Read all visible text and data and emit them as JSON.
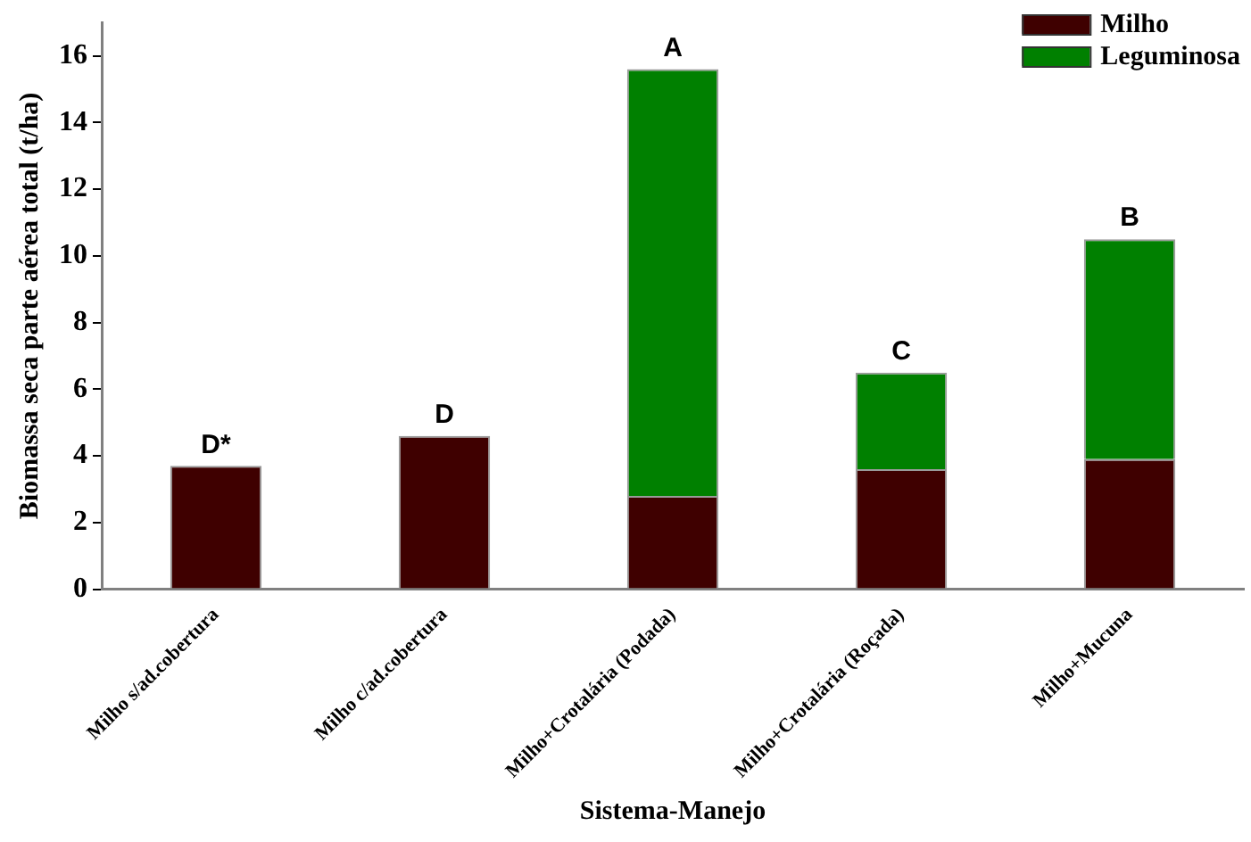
{
  "chart_data": {
    "type": "bar",
    "stacked": true,
    "xlabel": "Sistema-Manejo",
    "ylabel": "Biomassa seca parte aérea total (t/ha)",
    "categories": [
      "Milho s/ad.cobertura",
      "Milho c/ad.cobertura",
      "Milho+Crotalária (Podada)",
      "Milho+Crotalária (Roçada)",
      "Milho+Mucuna"
    ],
    "series": [
      {
        "name": "Milho",
        "color": "#3f0000",
        "values": [
          3.7,
          4.6,
          2.8,
          3.6,
          3.9
        ]
      },
      {
        "name": "Leguminosa",
        "color": "#008000",
        "values": [
          null,
          null,
          12.8,
          2.9,
          6.6
        ]
      }
    ],
    "ylim": [
      0,
      17
    ],
    "yticks": [
      0,
      2,
      4,
      6,
      8,
      10,
      12,
      14,
      16
    ],
    "grid": false,
    "legend": "top right",
    "annotations": [
      {
        "text": "D*",
        "x": "Milho s/ad.cobertura",
        "y": 3.7
      },
      {
        "text": "D",
        "x": "Milho c/ad.cobertura",
        "y": 4.6
      },
      {
        "text": "A",
        "x": "Milho+Crotalária (Podada)",
        "y": 15.6
      },
      {
        "text": "C",
        "x": "Milho+Crotalária (Roçada)",
        "y": 6.5
      },
      {
        "text": "B",
        "x": "Milho+Mucuna",
        "y": 10.5
      }
    ]
  }
}
